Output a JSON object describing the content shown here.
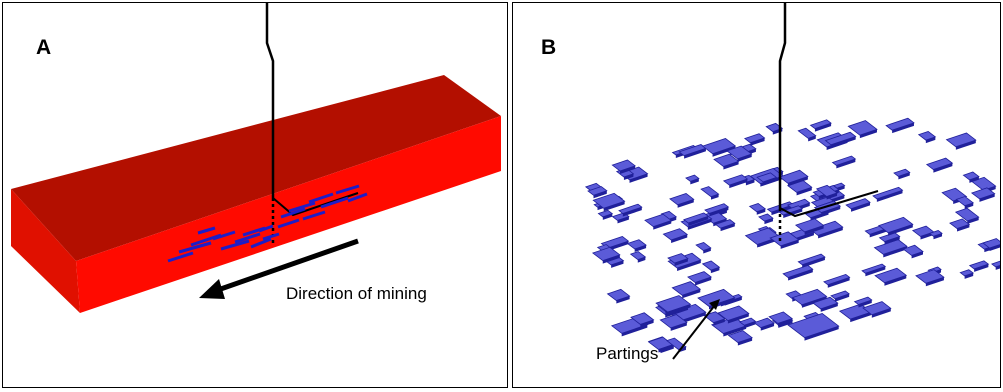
{
  "figure": {
    "panels": [
      {
        "id": "A",
        "label": "A",
        "annotation": "Direction of mining"
      },
      {
        "id": "B",
        "label": "B",
        "annotation": "Partings"
      }
    ],
    "colors": {
      "block_top": "#b30f00",
      "block_front": "#ff0a00",
      "block_side": "#e01000",
      "parting_fill": "#5b5bd8",
      "parting_edge": "#20209a",
      "line": "#000000"
    }
  }
}
